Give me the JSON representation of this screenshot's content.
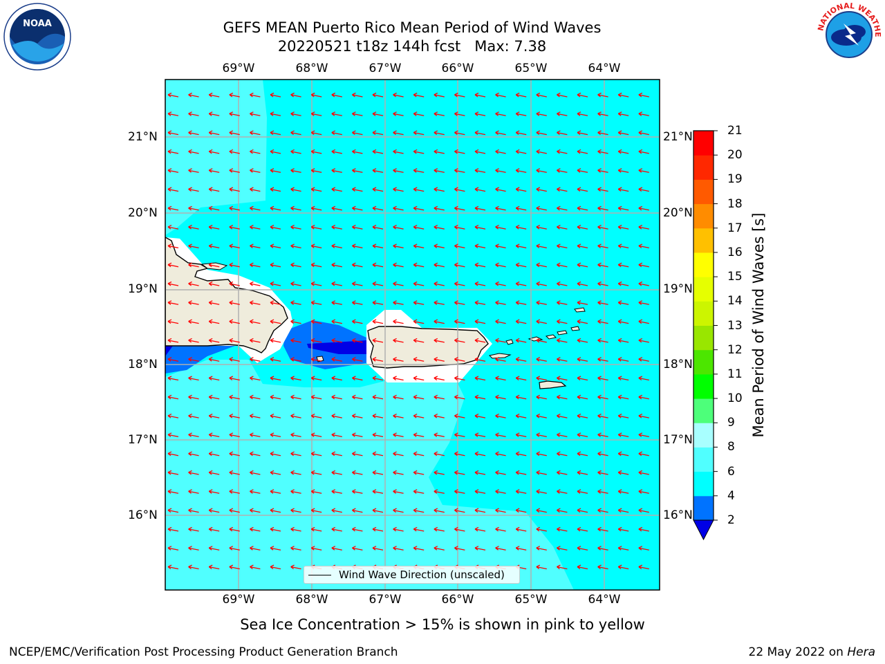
{
  "header": {
    "title_line1": "GEFS MEAN Puerto Rico Mean Period of Wind Waves",
    "title_line2_run": "20220521 t18z 144h fcst",
    "title_line2_max": "Max: 7.38"
  },
  "map": {
    "lon_labels": [
      "69°W",
      "68°W",
      "67°W",
      "66°W",
      "65°W",
      "64°W"
    ],
    "lat_labels": [
      "21°N",
      "20°N",
      "19°N",
      "18°N",
      "17°N",
      "16°N"
    ],
    "legend_label": "Wind Wave Direction (unscaled)",
    "land_color": "#efecdc",
    "arrow_color": "#ff0000"
  },
  "colorbar": {
    "label": "Mean Period of Wind Waves [s]",
    "ticks": [
      "2",
      "4",
      "6",
      "8",
      "9",
      "10",
      "11",
      "12",
      "13",
      "14",
      "15",
      "16",
      "17",
      "18",
      "19",
      "20",
      "21"
    ],
    "colors": [
      "#0000e6",
      "#0073ff",
      "#00ffff",
      "#50ffff",
      "#a8ffff",
      "#4dff7a",
      "#00ff00",
      "#4ce600",
      "#99e600",
      "#ccf500",
      "#e6ff00",
      "#ffff00",
      "#ffc000",
      "#ff8c00",
      "#ff5a00",
      "#ff2800",
      "#ff0000"
    ]
  },
  "footer": {
    "sea_ice_note": "Sea Ice Concentration > 15% is shown in pink to yellow",
    "credit": "NCEP/EMC/Verification Post Processing Product Generation Branch",
    "date": "22 May 2022 on",
    "host": "Hera"
  },
  "logos": {
    "noaa_text": "NOAA",
    "nws_text": "NATIONAL WEATHER SERVICE"
  }
}
